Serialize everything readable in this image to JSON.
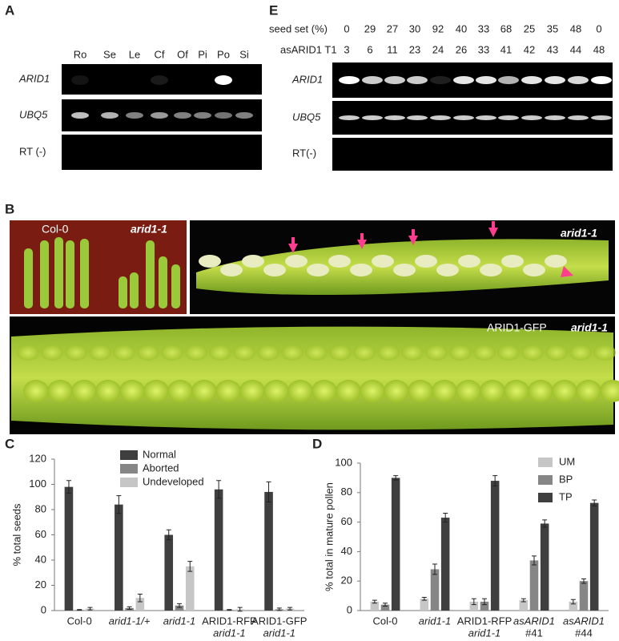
{
  "panel_labels": [
    "A",
    "E",
    "B",
    "C",
    "D"
  ],
  "gel_a": {
    "lanes": [
      "Ro",
      "Se",
      "Le",
      "Cf",
      "Of",
      "Pi",
      "Po",
      "Si"
    ],
    "rows": [
      "ARID1",
      "UBQ5",
      "RT (-)"
    ]
  },
  "gel_e": {
    "header_rows": [
      {
        "label": "seed set (%)",
        "values": [
          0,
          29,
          27,
          30,
          92,
          40,
          33,
          68,
          25,
          35,
          48,
          0
        ]
      },
      {
        "label": "asARID1 T1",
        "values": [
          3,
          6,
          11,
          23,
          24,
          26,
          33,
          41,
          42,
          43,
          44,
          48
        ]
      }
    ],
    "rows": [
      "ARID1",
      "UBQ5",
      "RT(-)"
    ]
  },
  "photos": {
    "labels": [
      "Col-0",
      "arid1-1",
      "arid1-1",
      "ARID1-GFP",
      "arid1-1"
    ]
  },
  "chart_data": [
    {
      "type": "bar",
      "ylabel": "% total seeds",
      "categories": [
        "Col-0",
        "arid1-1/+",
        "arid1-1",
        "ARID1-RFP",
        "ARID1-GFP"
      ],
      "category_sublabels": [
        null,
        null,
        null,
        "arid1-1",
        "arid1-1"
      ],
      "series": [
        {
          "name": "Normal",
          "color": "#3f3f3f",
          "values": [
            98,
            84,
            60,
            96,
            94
          ],
          "errors": [
            5,
            7,
            4,
            7,
            8
          ]
        },
        {
          "name": "Aborted",
          "color": "#868686",
          "values": [
            0.5,
            2,
            4,
            0.5,
            1
          ],
          "errors": [
            0.3,
            1,
            1.5,
            0.3,
            1
          ]
        },
        {
          "name": "Undeveloped",
          "color": "#c6c6c6",
          "values": [
            1.5,
            10,
            35,
            1,
            1.5
          ],
          "errors": [
            1,
            3,
            4,
            1.5,
            1
          ]
        }
      ],
      "ylim": [
        0,
        120
      ],
      "yticks": [
        0,
        20,
        40,
        60,
        80,
        100,
        120
      ]
    },
    {
      "type": "bar",
      "ylabel": "% total in mature pollen",
      "categories": [
        "Col-0",
        "arid1-1",
        "ARID1-RFP",
        "asARID1",
        "asARID1"
      ],
      "category_sublabels": [
        null,
        null,
        "arid1-1",
        "#41",
        "#44"
      ],
      "series": [
        {
          "name": "UM",
          "color": "#c6c6c6",
          "values": [
            6,
            8,
            6,
            7,
            6
          ],
          "errors": [
            1,
            1,
            2,
            1,
            1.5
          ]
        },
        {
          "name": "BP",
          "color": "#868686",
          "values": [
            4,
            28,
            6,
            34,
            20
          ],
          "errors": [
            1,
            3.5,
            2,
            3,
            1.5
          ]
        },
        {
          "name": "TP",
          "color": "#3f3f3f",
          "values": [
            90,
            63,
            88,
            59,
            73
          ],
          "errors": [
            1.5,
            3,
            3.5,
            2.5,
            2
          ]
        }
      ],
      "ylim": [
        0,
        100
      ],
      "yticks": [
        0,
        20,
        40,
        60,
        80,
        100
      ]
    }
  ]
}
